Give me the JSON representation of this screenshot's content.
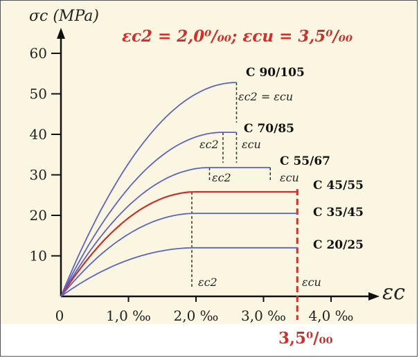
{
  "chart_data": {
    "type": "line",
    "y_axis_label": "σc (MPa)",
    "x_axis_label": "εc",
    "headline": "εc2 = 2,0⁰/₀₀;   εcu = 3,5⁰/₀₀",
    "y_ticks": [
      "10",
      "20",
      "30",
      "40",
      "50",
      "60"
    ],
    "x_ticks": [
      "0",
      "1,0 ‰",
      "2,0 ‰",
      "3,0 ‰",
      "4,0 ‰"
    ],
    "ylim": [
      0,
      60
    ],
    "xlim": [
      0,
      4.5
    ],
    "red_value_label": "3,5⁰/₀₀",
    "colors": {
      "curve": "#5b63c7",
      "highlight": "#c9302c",
      "annotation": "#d0302a"
    },
    "series": [
      {
        "name": "C 90/105",
        "fc": 52.8,
        "eps_c2": 2.6,
        "eps_cu": 2.6
      },
      {
        "name": "C 70/85",
        "fc": 40.5,
        "eps_c2": 2.4,
        "eps_cu": 2.6
      },
      {
        "name": "C 55/67",
        "fc": 31.8,
        "eps_c2": 2.2,
        "eps_cu": 3.1
      },
      {
        "name": "C 45/55",
        "fc": 25.8,
        "eps_c2": 2.0,
        "eps_cu": 3.5,
        "highlight": true
      },
      {
        "name": "C 35/45",
        "fc": 20.5,
        "eps_c2": 2.0,
        "eps_cu": 3.5
      },
      {
        "name": "C 20/25",
        "fc": 12.0,
        "eps_c2": 2.0,
        "eps_cu": 3.5
      }
    ],
    "annotations": [
      {
        "text": "εc2 = εcu"
      },
      {
        "text": "εc2"
      },
      {
        "text": "εcu"
      },
      {
        "text": "εc2"
      },
      {
        "text": "εcu"
      },
      {
        "text": "εc2"
      },
      {
        "text": "εcu"
      }
    ]
  }
}
